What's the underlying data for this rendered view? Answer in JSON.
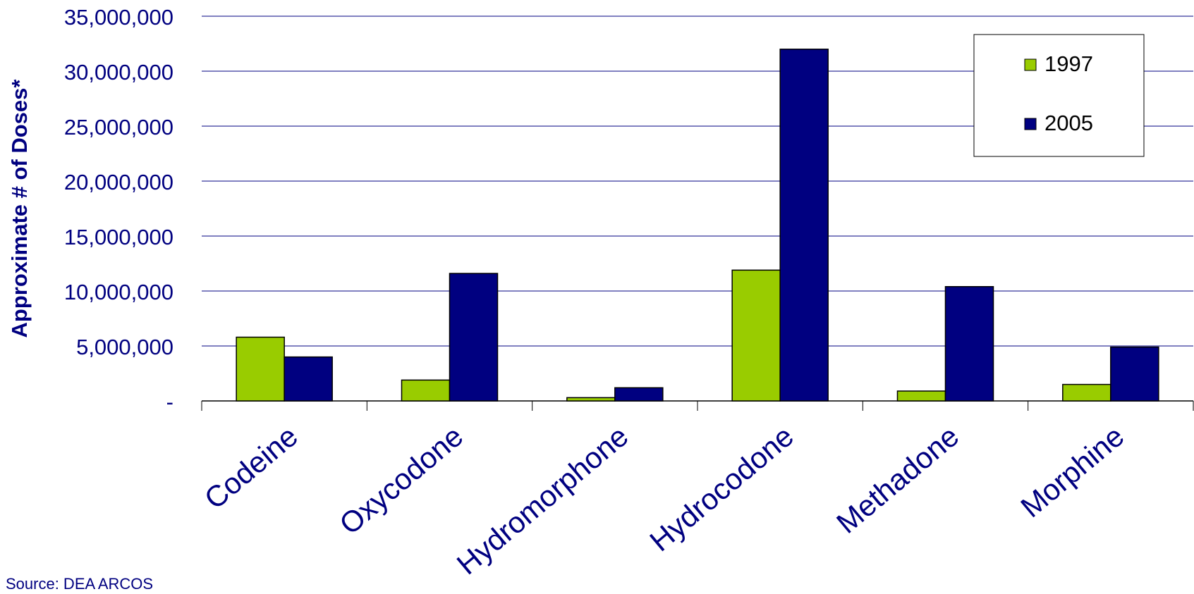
{
  "chart_data": {
    "type": "bar",
    "title": "",
    "xlabel": "",
    "ylabel": "Approximate # of Doses*",
    "ylim": [
      0,
      35000000
    ],
    "yticks": [
      {
        "value": 0,
        "label": "-"
      },
      {
        "value": 5000000,
        "label": "5,000,000"
      },
      {
        "value": 10000000,
        "label": "10,000,000"
      },
      {
        "value": 15000000,
        "label": "15,000,000"
      },
      {
        "value": 20000000,
        "label": "20,000,000"
      },
      {
        "value": 25000000,
        "label": "25,000,000"
      },
      {
        "value": 30000000,
        "label": "30,000,000"
      },
      {
        "value": 35000000,
        "label": "35,000,000"
      }
    ],
    "grid": true,
    "legend_position": "top-right",
    "categories": [
      "Codeine",
      "Oxycodone",
      "Hydromorphone",
      "Hydrocodone",
      "Methadone",
      "Morphine"
    ],
    "series": [
      {
        "name": "1997",
        "color": "#99CC00",
        "values": [
          5800000,
          1900000,
          300000,
          11900000,
          900000,
          1500000
        ]
      },
      {
        "name": "2005",
        "color": "#000080",
        "values": [
          4000000,
          11600000,
          1200000,
          32000000,
          10400000,
          4900000
        ]
      }
    ]
  },
  "footer": {
    "source": "Source: DEA ARCOS"
  },
  "colors": {
    "text": "#000080",
    "gridline": "#000080",
    "axis": "#000000"
  }
}
